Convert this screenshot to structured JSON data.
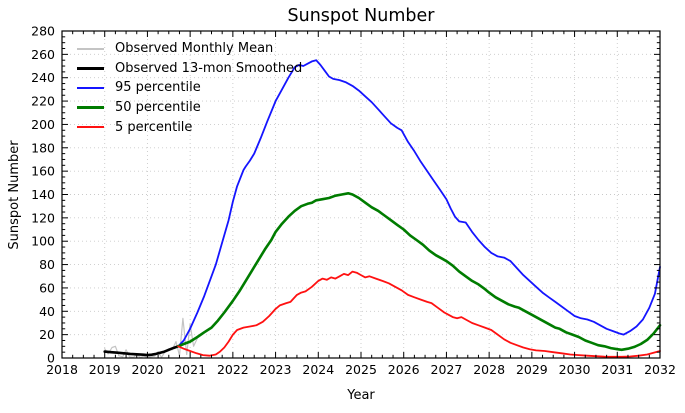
{
  "figure": {
    "title": "Sunspot Number",
    "title_color": "#1515ff",
    "xlabel": "Year",
    "ylabel": "Sunspot Number"
  },
  "chart_data": {
    "type": "line",
    "title": "Sunspot Number",
    "xlabel": "Year",
    "ylabel": "Sunspot Number",
    "xlim": [
      2018,
      2032
    ],
    "ylim": [
      0,
      280
    ],
    "x_major_ticks": [
      2018,
      2019,
      2020,
      2021,
      2022,
      2023,
      2024,
      2025,
      2026,
      2027,
      2028,
      2029,
      2030,
      2031,
      2032
    ],
    "y_major_ticks": [
      0,
      20,
      40,
      60,
      80,
      100,
      120,
      140,
      160,
      180,
      200,
      220,
      240,
      260,
      280
    ],
    "x_minor_step": 0.25,
    "y_minor_step": 5,
    "grid": true,
    "grid_style": "dotted",
    "grid_color": "#c9c9c9",
    "axis_color": "#000000",
    "legend_position": "upper-left",
    "series": [
      {
        "id": "observed-monthly-mean",
        "name": "Observed Monthly Mean",
        "color": "#c4c4c4",
        "width": 1.2,
        "points": [
          [
            2019.0,
            8
          ],
          [
            2019.08,
            3.5
          ],
          [
            2019.17,
            9
          ],
          [
            2019.25,
            10
          ],
          [
            2019.33,
            2
          ],
          [
            2019.42,
            1
          ],
          [
            2019.5,
            7
          ],
          [
            2019.58,
            1
          ],
          [
            2019.67,
            0.5
          ],
          [
            2019.75,
            3
          ],
          [
            2019.83,
            0.5
          ],
          [
            2019.92,
            1.5
          ],
          [
            2020.0,
            0.3
          ],
          [
            2020.08,
            1
          ],
          [
            2020.17,
            1.5
          ],
          [
            2020.25,
            5.5
          ],
          [
            2020.33,
            0.5
          ],
          [
            2020.42,
            6
          ],
          [
            2020.5,
            8
          ],
          [
            2020.58,
            7
          ],
          [
            2020.67,
            14
          ],
          [
            2020.75,
            2
          ],
          [
            2020.83,
            34
          ],
          [
            2020.92,
            3
          ],
          [
            2021.0,
            29
          ],
          [
            2021.08,
            10
          ],
          [
            2021.17,
            17
          ]
        ]
      },
      {
        "id": "observed-13mon-smoothed",
        "name": "Observed 13-mon Smoothed",
        "color": "#000000",
        "width": 2.6,
        "points": [
          [
            2019.0,
            5.5
          ],
          [
            2019.15,
            5
          ],
          [
            2019.3,
            4.5
          ],
          [
            2019.45,
            4
          ],
          [
            2019.6,
            3.5
          ],
          [
            2019.75,
            3.2
          ],
          [
            2019.9,
            2.8
          ],
          [
            2020.0,
            2.5
          ],
          [
            2020.1,
            2.8
          ],
          [
            2020.2,
            3.5
          ],
          [
            2020.3,
            4.5
          ],
          [
            2020.4,
            5.5
          ],
          [
            2020.5,
            7
          ],
          [
            2020.6,
            8.5
          ],
          [
            2020.72,
            10
          ]
        ]
      },
      {
        "id": "p95",
        "name": "95 percentile",
        "color": "#1515ff",
        "width": 1.8,
        "points": [
          [
            2020.72,
            10
          ],
          [
            2020.85,
            15
          ],
          [
            2021.0,
            25
          ],
          [
            2021.17,
            39
          ],
          [
            2021.33,
            53
          ],
          [
            2021.47,
            67
          ],
          [
            2021.6,
            80
          ],
          [
            2021.75,
            99
          ],
          [
            2021.9,
            118
          ],
          [
            2022.0,
            134
          ],
          [
            2022.1,
            147
          ],
          [
            2022.25,
            161
          ],
          [
            2022.3,
            164
          ],
          [
            2022.4,
            169
          ],
          [
            2022.5,
            175
          ],
          [
            2022.65,
            188
          ],
          [
            2022.8,
            202
          ],
          [
            2023.0,
            220
          ],
          [
            2023.15,
            230
          ],
          [
            2023.3,
            240
          ],
          [
            2023.45,
            249
          ],
          [
            2023.55,
            251
          ],
          [
            2023.65,
            250
          ],
          [
            2023.75,
            252
          ],
          [
            2023.85,
            254
          ],
          [
            2023.95,
            255
          ],
          [
            2024.05,
            251
          ],
          [
            2024.15,
            246
          ],
          [
            2024.25,
            241
          ],
          [
            2024.35,
            239
          ],
          [
            2024.5,
            238
          ],
          [
            2024.65,
            236
          ],
          [
            2024.8,
            233
          ],
          [
            2024.95,
            229
          ],
          [
            2025.1,
            224
          ],
          [
            2025.25,
            219
          ],
          [
            2025.4,
            213
          ],
          [
            2025.55,
            207
          ],
          [
            2025.7,
            201
          ],
          [
            2025.85,
            197
          ],
          [
            2025.95,
            195
          ],
          [
            2026.1,
            185
          ],
          [
            2026.25,
            177
          ],
          [
            2026.4,
            168
          ],
          [
            2026.55,
            160
          ],
          [
            2026.7,
            152
          ],
          [
            2026.85,
            144
          ],
          [
            2027.0,
            136
          ],
          [
            2027.1,
            128
          ],
          [
            2027.2,
            121
          ],
          [
            2027.3,
            117
          ],
          [
            2027.45,
            116
          ],
          [
            2027.6,
            108
          ],
          [
            2027.75,
            101
          ],
          [
            2027.9,
            95
          ],
          [
            2028.05,
            90
          ],
          [
            2028.2,
            87
          ],
          [
            2028.35,
            86
          ],
          [
            2028.5,
            83
          ],
          [
            2028.65,
            77
          ],
          [
            2028.8,
            71
          ],
          [
            2028.95,
            66
          ],
          [
            2029.1,
            61
          ],
          [
            2029.25,
            56
          ],
          [
            2029.4,
            52
          ],
          [
            2029.55,
            48
          ],
          [
            2029.7,
            44
          ],
          [
            2029.85,
            40
          ],
          [
            2030.0,
            36
          ],
          [
            2030.15,
            34
          ],
          [
            2030.3,
            33
          ],
          [
            2030.45,
            31
          ],
          [
            2030.6,
            28
          ],
          [
            2030.75,
            25
          ],
          [
            2030.9,
            23
          ],
          [
            2031.05,
            21
          ],
          [
            2031.15,
            20
          ],
          [
            2031.3,
            23
          ],
          [
            2031.45,
            27
          ],
          [
            2031.6,
            33
          ],
          [
            2031.75,
            43
          ],
          [
            2031.88,
            55
          ],
          [
            2032.0,
            78
          ]
        ]
      },
      {
        "id": "p50",
        "name": "50 percentile",
        "color": "#007c00",
        "width": 2.6,
        "points": [
          [
            2020.72,
            10
          ],
          [
            2020.85,
            12
          ],
          [
            2021.0,
            14
          ],
          [
            2021.17,
            18
          ],
          [
            2021.33,
            22
          ],
          [
            2021.5,
            26
          ],
          [
            2021.65,
            32
          ],
          [
            2021.8,
            39
          ],
          [
            2022.0,
            49
          ],
          [
            2022.15,
            57
          ],
          [
            2022.3,
            66
          ],
          [
            2022.45,
            75
          ],
          [
            2022.6,
            84
          ],
          [
            2022.75,
            93
          ],
          [
            2022.9,
            101
          ],
          [
            2023.0,
            108
          ],
          [
            2023.15,
            115
          ],
          [
            2023.3,
            121
          ],
          [
            2023.45,
            126
          ],
          [
            2023.6,
            130
          ],
          [
            2023.75,
            132
          ],
          [
            2023.85,
            133
          ],
          [
            2023.95,
            135
          ],
          [
            2024.1,
            136
          ],
          [
            2024.25,
            137
          ],
          [
            2024.4,
            139
          ],
          [
            2024.55,
            140
          ],
          [
            2024.7,
            141
          ],
          [
            2024.8,
            140
          ],
          [
            2024.95,
            137
          ],
          [
            2025.1,
            133
          ],
          [
            2025.25,
            129
          ],
          [
            2025.4,
            126
          ],
          [
            2025.55,
            122
          ],
          [
            2025.7,
            118
          ],
          [
            2025.85,
            114
          ],
          [
            2026.0,
            110
          ],
          [
            2026.15,
            105
          ],
          [
            2026.3,
            101
          ],
          [
            2026.45,
            97
          ],
          [
            2026.6,
            92
          ],
          [
            2026.75,
            88
          ],
          [
            2026.9,
            85
          ],
          [
            2027.0,
            83
          ],
          [
            2027.15,
            79
          ],
          [
            2027.3,
            74
          ],
          [
            2027.45,
            70
          ],
          [
            2027.6,
            66
          ],
          [
            2027.75,
            63
          ],
          [
            2027.9,
            59
          ],
          [
            2028.0,
            56
          ],
          [
            2028.15,
            52
          ],
          [
            2028.3,
            49
          ],
          [
            2028.45,
            46
          ],
          [
            2028.6,
            44
          ],
          [
            2028.7,
            43
          ],
          [
            2028.85,
            40
          ],
          [
            2029.0,
            37
          ],
          [
            2029.15,
            34
          ],
          [
            2029.3,
            31
          ],
          [
            2029.45,
            28
          ],
          [
            2029.55,
            26
          ],
          [
            2029.65,
            25
          ],
          [
            2029.8,
            22
          ],
          [
            2029.95,
            20
          ],
          [
            2030.1,
            18
          ],
          [
            2030.25,
            15
          ],
          [
            2030.4,
            13
          ],
          [
            2030.55,
            11
          ],
          [
            2030.7,
            10
          ],
          [
            2030.85,
            8.5
          ],
          [
            2031.0,
            7.5
          ],
          [
            2031.1,
            7
          ],
          [
            2031.25,
            8
          ],
          [
            2031.4,
            9.5
          ],
          [
            2031.55,
            12
          ],
          [
            2031.7,
            15.5
          ],
          [
            2031.85,
            21
          ],
          [
            2032.0,
            28
          ]
        ]
      },
      {
        "id": "p5",
        "name": "5 percentile",
        "color": "#ff1111",
        "width": 1.8,
        "points": [
          [
            2020.72,
            10
          ],
          [
            2020.85,
            8
          ],
          [
            2021.0,
            6
          ],
          [
            2021.15,
            4
          ],
          [
            2021.3,
            2.5
          ],
          [
            2021.45,
            2
          ],
          [
            2021.6,
            3
          ],
          [
            2021.7,
            5.5
          ],
          [
            2021.8,
            9
          ],
          [
            2021.9,
            14
          ],
          [
            2022.0,
            20
          ],
          [
            2022.1,
            24
          ],
          [
            2022.25,
            26
          ],
          [
            2022.4,
            27
          ],
          [
            2022.55,
            28
          ],
          [
            2022.7,
            31
          ],
          [
            2022.85,
            36
          ],
          [
            2023.0,
            42
          ],
          [
            2023.1,
            45
          ],
          [
            2023.25,
            47
          ],
          [
            2023.35,
            48
          ],
          [
            2023.5,
            54
          ],
          [
            2023.6,
            56
          ],
          [
            2023.7,
            57
          ],
          [
            2023.85,
            61
          ],
          [
            2024.0,
            66
          ],
          [
            2024.1,
            68
          ],
          [
            2024.2,
            67
          ],
          [
            2024.3,
            69
          ],
          [
            2024.4,
            68
          ],
          [
            2024.5,
            70
          ],
          [
            2024.6,
            72
          ],
          [
            2024.7,
            71
          ],
          [
            2024.8,
            74
          ],
          [
            2024.9,
            73
          ],
          [
            2025.0,
            71
          ],
          [
            2025.1,
            69
          ],
          [
            2025.2,
            70
          ],
          [
            2025.35,
            68
          ],
          [
            2025.5,
            66
          ],
          [
            2025.65,
            64
          ],
          [
            2025.8,
            61
          ],
          [
            2025.95,
            58
          ],
          [
            2026.1,
            54
          ],
          [
            2026.25,
            52
          ],
          [
            2026.4,
            50
          ],
          [
            2026.55,
            48
          ],
          [
            2026.65,
            47
          ],
          [
            2026.8,
            43
          ],
          [
            2026.95,
            39
          ],
          [
            2027.05,
            37
          ],
          [
            2027.15,
            35
          ],
          [
            2027.25,
            34
          ],
          [
            2027.35,
            35
          ],
          [
            2027.45,
            33
          ],
          [
            2027.6,
            30
          ],
          [
            2027.75,
            28
          ],
          [
            2027.9,
            26
          ],
          [
            2028.05,
            24
          ],
          [
            2028.2,
            20
          ],
          [
            2028.35,
            16
          ],
          [
            2028.5,
            13
          ],
          [
            2028.65,
            11
          ],
          [
            2028.8,
            9
          ],
          [
            2028.95,
            7.5
          ],
          [
            2029.1,
            6.5
          ],
          [
            2029.3,
            6
          ],
          [
            2029.5,
            5
          ],
          [
            2029.7,
            4
          ],
          [
            2029.9,
            3
          ],
          [
            2030.1,
            2.5
          ],
          [
            2030.3,
            2
          ],
          [
            2030.5,
            1.5
          ],
          [
            2030.7,
            1.2
          ],
          [
            2030.9,
            1
          ],
          [
            2031.1,
            1
          ],
          [
            2031.3,
            1.3
          ],
          [
            2031.5,
            2
          ],
          [
            2031.7,
            3
          ],
          [
            2031.85,
            4.5
          ],
          [
            2032.0,
            6
          ]
        ]
      }
    ]
  }
}
